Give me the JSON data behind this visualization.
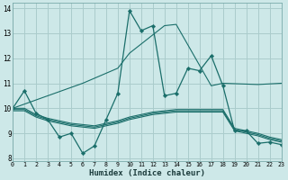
{
  "xlabel": "Humidex (Indice chaleur)",
  "bg_color": "#cde8e8",
  "grid_color": "#aacccc",
  "line_color": "#1a6e6a",
  "x_ticks": [
    0,
    1,
    2,
    3,
    4,
    5,
    6,
    7,
    8,
    9,
    10,
    11,
    12,
    13,
    14,
    15,
    16,
    17,
    18,
    19,
    20,
    21,
    22,
    23
  ],
  "y_ticks": [
    8,
    9,
    10,
    11,
    12,
    13,
    14
  ],
  "xlim": [
    0,
    23
  ],
  "ylim": [
    7.9,
    14.2
  ],
  "series": [
    {
      "x": [
        0,
        1,
        2,
        3,
        4,
        5,
        6,
        7,
        8,
        9,
        10,
        11,
        12,
        13,
        14,
        15,
        16,
        17,
        18,
        19,
        20,
        21,
        22,
        23
      ],
      "y": [
        10.0,
        10.7,
        9.8,
        9.55,
        8.85,
        9.0,
        8.2,
        8.5,
        9.55,
        10.6,
        13.9,
        13.1,
        13.3,
        10.5,
        10.6,
        11.6,
        11.5,
        12.1,
        10.9,
        9.1,
        9.1,
        8.6,
        8.65,
        8.55
      ],
      "marker": true
    },
    {
      "x": [
        0,
        3,
        6,
        9,
        10,
        13,
        14,
        17,
        18,
        21,
        23
      ],
      "y": [
        10.0,
        10.5,
        11.0,
        11.6,
        12.2,
        13.3,
        13.35,
        10.9,
        11.0,
        10.95,
        11.0
      ],
      "marker": false
    },
    {
      "x": [
        0,
        1,
        2,
        3,
        4,
        5,
        6,
        7,
        8,
        9,
        10,
        11,
        12,
        13,
        14,
        15,
        16,
        17,
        18,
        19,
        20,
        21,
        22,
        23
      ],
      "y": [
        10.0,
        10.0,
        9.75,
        9.6,
        9.5,
        9.4,
        9.35,
        9.3,
        9.4,
        9.5,
        9.65,
        9.75,
        9.85,
        9.9,
        9.95,
        9.95,
        9.95,
        9.95,
        9.95,
        9.2,
        9.1,
        9.0,
        8.85,
        8.75
      ],
      "marker": false
    },
    {
      "x": [
        0,
        1,
        2,
        3,
        4,
        5,
        6,
        7,
        8,
        9,
        10,
        11,
        12,
        13,
        14,
        15,
        16,
        17,
        18,
        19,
        20,
        21,
        22,
        23
      ],
      "y": [
        9.95,
        9.95,
        9.7,
        9.55,
        9.45,
        9.35,
        9.3,
        9.25,
        9.35,
        9.45,
        9.6,
        9.7,
        9.8,
        9.85,
        9.9,
        9.9,
        9.9,
        9.9,
        9.9,
        9.15,
        9.05,
        8.95,
        8.8,
        8.7
      ],
      "marker": false
    },
    {
      "x": [
        0,
        1,
        2,
        3,
        4,
        5,
        6,
        7,
        8,
        9,
        10,
        11,
        12,
        13,
        14,
        15,
        16,
        17,
        18,
        19,
        20,
        21,
        22,
        23
      ],
      "y": [
        9.9,
        9.9,
        9.65,
        9.5,
        9.4,
        9.3,
        9.25,
        9.2,
        9.3,
        9.4,
        9.55,
        9.65,
        9.75,
        9.8,
        9.85,
        9.85,
        9.85,
        9.85,
        9.85,
        9.1,
        9.0,
        8.9,
        8.75,
        8.65
      ],
      "marker": false
    }
  ]
}
